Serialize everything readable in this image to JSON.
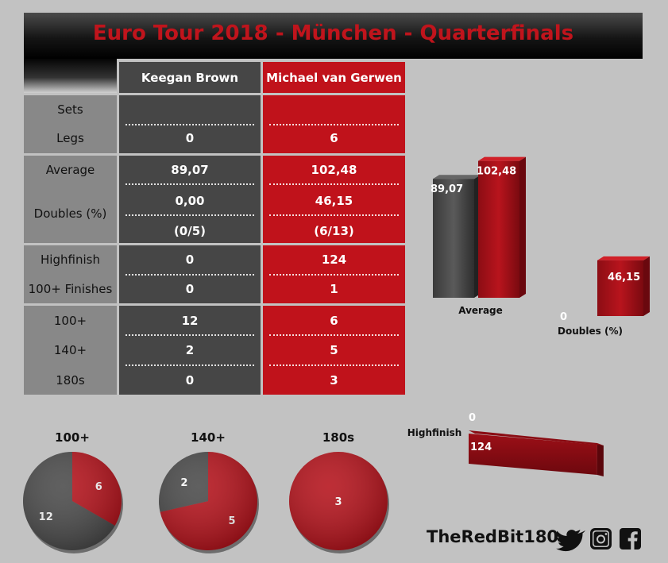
{
  "title": "Euro Tour 2018 - München - Quarterfinals",
  "players": [
    "Keegan Brown",
    "Michael van Gerwen"
  ],
  "table": {
    "rows": [
      {
        "label": "Sets",
        "kb": "",
        "mv": ""
      },
      {
        "label": "Legs",
        "kb": "0",
        "mv": "6"
      },
      {
        "label": "Average",
        "kb": "89,07",
        "mv": "102,48"
      },
      {
        "label": "Doubles (%)",
        "kb": "0,00",
        "mv": "46,15"
      },
      {
        "label": "",
        "kb": "(0/5)",
        "mv": "(6/13)"
      },
      {
        "label": "Highfinish",
        "kb": "0",
        "mv": "124"
      },
      {
        "label": "100+ Finishes",
        "kb": "0",
        "mv": "1"
      },
      {
        "label": "100+",
        "kb": "12",
        "mv": "6"
      },
      {
        "label": "140+",
        "kb": "2",
        "mv": "5"
      },
      {
        "label": "180s",
        "kb": "0",
        "mv": "3"
      }
    ]
  },
  "chart_data": [
    {
      "type": "bar",
      "categories": [
        "Average"
      ],
      "series": [
        {
          "name": "Keegan Brown",
          "values": [
            89.07
          ],
          "labels": [
            "89,07"
          ]
        },
        {
          "name": "Michael van Gerwen",
          "values": [
            102.48
          ],
          "labels": [
            "102,48"
          ]
        }
      ],
      "xlabel": "Average"
    },
    {
      "type": "bar",
      "categories": [
        "Doubles (%)"
      ],
      "series": [
        {
          "name": "Keegan Brown",
          "values": [
            0
          ],
          "labels": [
            "0"
          ]
        },
        {
          "name": "Michael van Gerwen",
          "values": [
            46.15
          ],
          "labels": [
            "46,15"
          ]
        }
      ],
      "xlabel": "Doubles (%)"
    },
    {
      "type": "bar",
      "orientation": "horizontal",
      "categories": [
        "Highfinish"
      ],
      "series": [
        {
          "name": "Keegan Brown",
          "values": [
            0
          ],
          "labels": [
            "0"
          ]
        },
        {
          "name": "Michael van Gerwen",
          "values": [
            124
          ],
          "labels": [
            "124"
          ]
        }
      ],
      "ylabel": "Highfinish"
    },
    {
      "type": "pie",
      "title": "100+",
      "slices": [
        {
          "name": "Michael van Gerwen",
          "value": 6,
          "label": "6"
        },
        {
          "name": "Keegan Brown",
          "value": 12,
          "label": "12"
        }
      ]
    },
    {
      "type": "pie",
      "title": "140+",
      "slices": [
        {
          "name": "Michael van Gerwen",
          "value": 5,
          "label": "5"
        },
        {
          "name": "Keegan Brown",
          "value": 2,
          "label": "2"
        }
      ]
    },
    {
      "type": "pie",
      "title": "180s",
      "slices": [
        {
          "name": "Michael van Gerwen",
          "value": 3,
          "label": "3"
        },
        {
          "name": "Keegan Brown",
          "value": 0,
          "label": ""
        }
      ]
    }
  ],
  "colors": {
    "kb": "#4a4a4a",
    "mv": "#b5121b",
    "label_bg": "#888888"
  },
  "brand": {
    "name": "TheRedBit180",
    "icons": [
      "twitter-icon",
      "instagram-icon",
      "facebook-icon"
    ]
  }
}
